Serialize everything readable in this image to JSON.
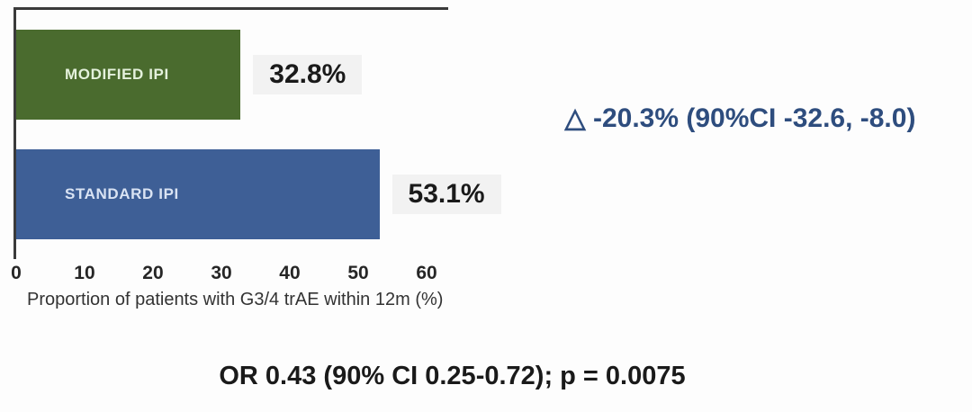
{
  "chart_data": {
    "type": "bar",
    "orientation": "horizontal",
    "categories": [
      "MODIFIED IPI",
      "STANDARD IPI"
    ],
    "values": [
      32.8,
      53.1
    ],
    "value_labels": [
      "32.8%",
      "53.1%"
    ],
    "bar_colors": [
      "#4a6b2e",
      "#3e5f96"
    ],
    "bar_label_colors": [
      "#e4f1dc",
      "#d9e3f3"
    ],
    "xlabel": "Proportion of patients with G3/4 trAE within 12m (%)",
    "xlim": [
      0,
      60
    ],
    "x_ticks": [
      "0",
      "10",
      "20",
      "30",
      "40",
      "50",
      "60"
    ],
    "grid": false,
    "legend": "none",
    "value_chip_bg": "#f2f2f2",
    "axis_line_color": "#3a3a3a",
    "annotations": {
      "delta_text": "△ -20.3% (90%CI -32.6, -8.0)",
      "delta_color": "#2e4d7e",
      "or_text": "OR 0.43 (90% CI 0.25-0.72); p = 0.0075"
    }
  }
}
